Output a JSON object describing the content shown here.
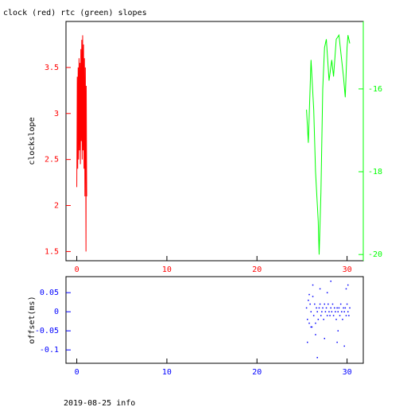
{
  "chart_data": [
    {
      "type": "line",
      "title": "clock (red) rtc (green) slopes",
      "ylabel": "clockslope",
      "xlim": [
        -1.2,
        31.8
      ],
      "xticks": [
        0,
        10,
        20,
        30
      ],
      "xcolor": "#ff0000",
      "ylim": [
        1.4,
        4.0
      ],
      "yticks": [
        1.5,
        2,
        2.5,
        3,
        3.5
      ],
      "ycolor": "#ff0000",
      "y2lim": [
        -20.15,
        -14.37
      ],
      "y2ticks": [
        -20,
        -18,
        -16
      ],
      "y2color": "#00ff00",
      "series": [
        {
          "color": "#ff0000",
          "axis": "y",
          "x": [
            0.0,
            0.05,
            0.1,
            0.15,
            0.2,
            0.25,
            0.3,
            0.35,
            0.4,
            0.45,
            0.5,
            0.55,
            0.6,
            0.65,
            0.7,
            0.75,
            0.8,
            0.85,
            0.9,
            0.95,
            1.0,
            1.02,
            1.05,
            1.1
          ],
          "values": [
            2.2,
            3.4,
            2.4,
            3.5,
            2.5,
            3.6,
            2.6,
            3.55,
            2.45,
            3.7,
            2.7,
            3.8,
            2.5,
            3.85,
            2.6,
            3.75,
            2.4,
            3.6,
            2.1,
            3.5,
            2.2,
            1.5,
            3.3,
            2.1
          ]
        },
        {
          "color": "#00ff00",
          "axis": "y2",
          "x": [
            25.5,
            25.7,
            26.0,
            26.3,
            26.5,
            26.8,
            26.9,
            27.1,
            27.3,
            27.5,
            27.7,
            28.0,
            28.3,
            28.5,
            28.8,
            29.1,
            29.4,
            29.6,
            29.8,
            30.0,
            30.1,
            30.3
          ],
          "values": [
            -16.5,
            -17.3,
            -15.3,
            -16.5,
            -18,
            -19.2,
            -20,
            -18.5,
            -16,
            -15,
            -14.8,
            -15.8,
            -15.3,
            -15.7,
            -14.8,
            -14.7,
            -15.3,
            -15.7,
            -16.2,
            -15,
            -14.7,
            -14.9
          ]
        }
      ]
    },
    {
      "type": "scatter",
      "ylabel": "offset(ms)",
      "footer": "2019-08-25 info",
      "xlim": [
        -1.2,
        31.8
      ],
      "xticks": [
        0,
        10,
        20,
        30
      ],
      "xcolor": "#0000ff",
      "ylim": [
        -0.135,
        0.092
      ],
      "yticks": [
        -0.1,
        -0.05,
        0,
        0.05
      ],
      "ycolor": "#0000ff",
      "color": "#0000ff",
      "x": [
        25.5,
        25.6,
        25.7,
        25.8,
        25.9,
        26.0,
        26.1,
        26.2,
        26.3,
        26.4,
        26.5,
        26.6,
        26.7,
        26.8,
        26.9,
        27.0,
        27.1,
        27.2,
        27.3,
        27.4,
        27.5,
        27.6,
        27.7,
        27.8,
        27.9,
        28.0,
        28.1,
        28.2,
        28.3,
        28.4,
        28.5,
        28.6,
        28.7,
        28.8,
        28.9,
        29.0,
        29.1,
        29.2,
        29.3,
        29.4,
        29.5,
        29.6,
        29.7,
        29.8,
        29.9,
        30.0,
        30.1,
        30.2,
        30.3,
        25.6,
        26.2,
        26.5,
        27.0,
        27.5,
        28.2,
        29.0,
        29.7,
        30.1,
        26.0,
        27.8,
        28.9,
        29.9,
        25.8,
        26.7
      ],
      "values": [
        0.01,
        -0.02,
        0.03,
        -0.03,
        0.02,
        0.0,
        -0.04,
        0.04,
        -0.01,
        0.02,
        -0.03,
        0.01,
        0.0,
        -0.02,
        0.01,
        0.02,
        -0.01,
        0.0,
        0.01,
        -0.02,
        0.02,
        0.0,
        0.01,
        -0.01,
        0.02,
        0.0,
        -0.01,
        0.01,
        0.0,
        0.02,
        -0.01,
        0.01,
        0.0,
        -0.02,
        0.01,
        0.0,
        0.01,
        -0.01,
        0.02,
        0.0,
        -0.02,
        0.01,
        0.0,
        0.01,
        -0.01,
        0.02,
        0.0,
        -0.01,
        0.01,
        -0.08,
        0.07,
        -0.06,
        0.06,
        -0.07,
        0.08,
        -0.05,
        -0.09,
        0.07,
        -0.04,
        0.05,
        -0.08,
        0.06,
        0.045,
        -0.12
      ]
    }
  ]
}
